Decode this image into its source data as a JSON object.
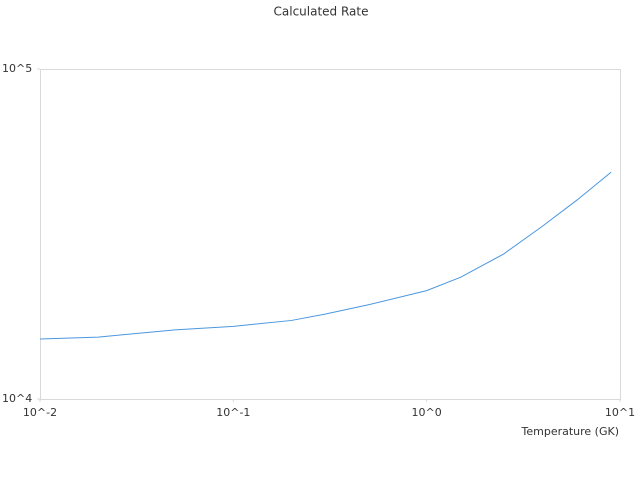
{
  "chart_data": {
    "type": "line",
    "title": "Calculated Rate",
    "x_label": "Temperature (GK)",
    "x": [
      0.01,
      0.02,
      0.03,
      0.05,
      0.1,
      0.2,
      0.3,
      0.5,
      1,
      1.5,
      2.5,
      4,
      6,
      9
    ],
    "series": [
      {
        "color": "#4a97e0",
        "values": [
          15200,
          15400,
          15750,
          16200,
          16600,
          17300,
          18100,
          19300,
          21300,
          23400,
          27500,
          33500,
          40100,
          48700
        ]
      }
    ],
    "x_log": true,
    "y_log": true,
    "xlim": [
      0.01,
      10
    ],
    "ylim": [
      10000,
      100000
    ],
    "xticks": [
      {
        "value": 0.01,
        "label": "10^-2"
      },
      {
        "value": 0.1,
        "label": "10^-1"
      },
      {
        "value": 1,
        "label": "10^0"
      },
      {
        "value": 10,
        "label": "10^1"
      }
    ],
    "yticks": [
      {
        "value": 10000,
        "label": "10^4"
      },
      {
        "value": 100000,
        "label": "10^5"
      }
    ]
  }
}
